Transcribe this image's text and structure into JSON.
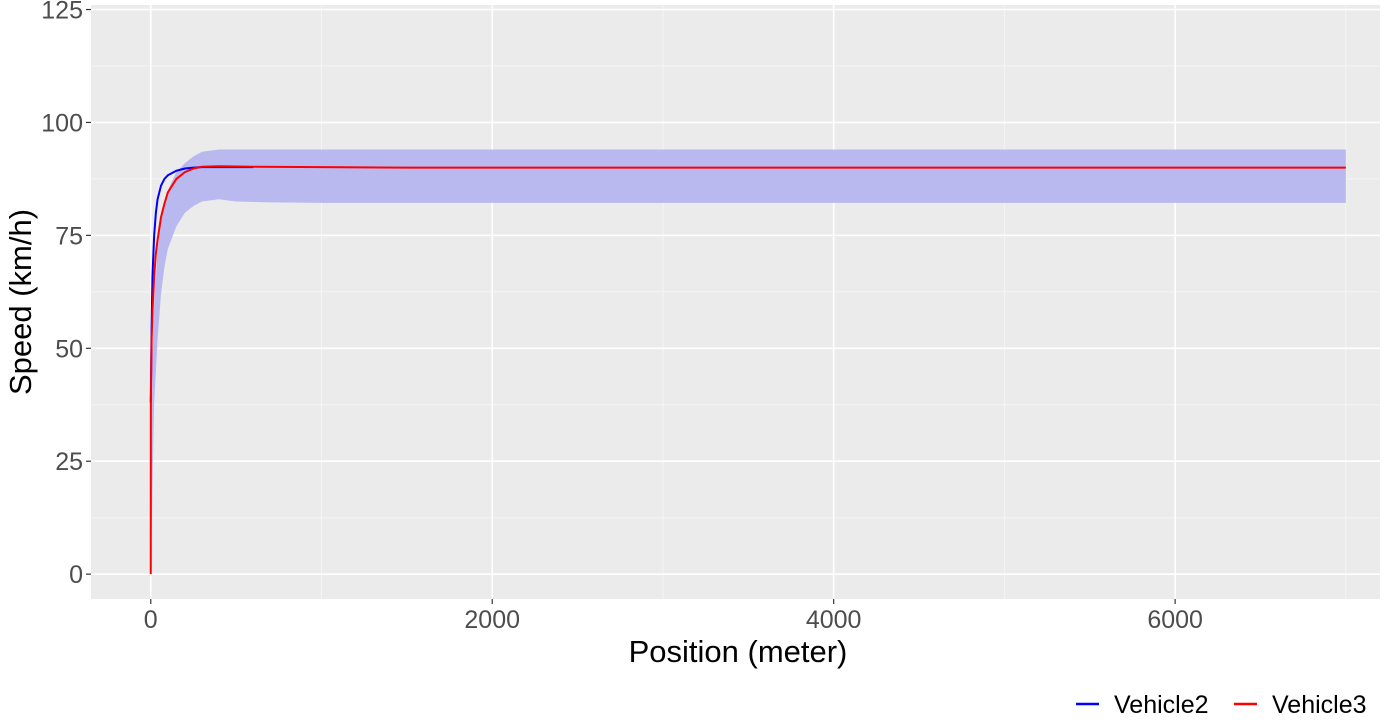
{
  "chart_data": {
    "type": "line",
    "xlabel": "Position (meter)",
    "ylabel": "Speed (km/h)",
    "xlim": [
      -350,
      7200
    ],
    "ylim": [
      -5.5,
      126
    ],
    "xticks": [
      0,
      2000,
      4000,
      6000
    ],
    "xtick_labels": [
      "0",
      "2000",
      "4000",
      "6000"
    ],
    "yticks": [
      0,
      25,
      50,
      75,
      100,
      125
    ],
    "ytick_labels": [
      "0",
      "25",
      "50",
      "75",
      "100",
      "125"
    ],
    "grid": true,
    "panel_background": "#ebebeb",
    "legend_position": "bottom-right",
    "band": {
      "color": "#b9b9f0",
      "x": [
        0,
        20,
        40,
        60,
        80,
        100,
        150,
        200,
        250,
        300,
        400,
        500,
        700,
        1000,
        2000,
        3000,
        4000,
        5000,
        6000,
        7000
      ],
      "upper": [
        38,
        60,
        72,
        78,
        82,
        85,
        89,
        91,
        92.5,
        93.5,
        94,
        94,
        94,
        94,
        94,
        94,
        94,
        94,
        94,
        94
      ],
      "lower": [
        0,
        38,
        52,
        62,
        68,
        72,
        77,
        80,
        81.5,
        82.5,
        83,
        82.5,
        82.3,
        82.2,
        82.2,
        82.2,
        82.2,
        82.2,
        82.2,
        82.2
      ]
    },
    "series": [
      {
        "name": "Vehicle2",
        "color": "#0000ff",
        "x": [
          0,
          5,
          10,
          20,
          30,
          40,
          60,
          80,
          100,
          150,
          200,
          250,
          300,
          400,
          600
        ],
        "y": [
          38,
          55,
          66,
          75,
          80,
          83,
          86,
          87.5,
          88.3,
          89.3,
          89.8,
          90,
          90.1,
          90.1,
          90.1
        ]
      },
      {
        "name": "Vehicle3",
        "color": "#ff0000",
        "x": [
          0,
          0.5,
          5,
          10,
          20,
          30,
          40,
          60,
          80,
          100,
          150,
          200,
          250,
          300,
          400,
          600,
          1000,
          1500,
          3000,
          5000,
          7000
        ],
        "y": [
          0,
          38,
          52,
          58,
          66,
          71,
          74,
          79,
          82,
          84.5,
          87.5,
          89,
          89.8,
          90.2,
          90.3,
          90.2,
          90.1,
          90,
          90,
          90,
          90
        ]
      }
    ]
  }
}
